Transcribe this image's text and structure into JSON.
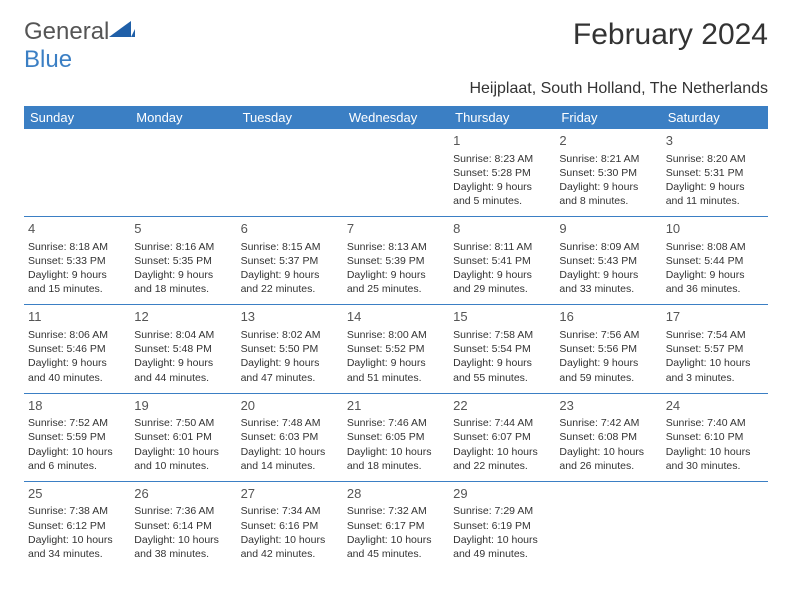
{
  "logo": {
    "text1": "General",
    "text2": "Blue"
  },
  "title": "February 2024",
  "location": "Heijplaat, South Holland, The Netherlands",
  "colors": {
    "header_bg": "#3b7fc4",
    "header_fg": "#ffffff",
    "border": "#3b7fc4",
    "text": "#333333"
  },
  "typography": {
    "title_fontsize": 30,
    "location_fontsize": 16,
    "dayhead_fontsize": 13,
    "cell_fontsize": 10.5
  },
  "day_headers": [
    "Sunday",
    "Monday",
    "Tuesday",
    "Wednesday",
    "Thursday",
    "Friday",
    "Saturday"
  ],
  "weeks": [
    [
      null,
      null,
      null,
      null,
      {
        "n": "1",
        "sr": "Sunrise: 8:23 AM",
        "ss": "Sunset: 5:28 PM",
        "d1": "Daylight: 9 hours",
        "d2": "and 5 minutes."
      },
      {
        "n": "2",
        "sr": "Sunrise: 8:21 AM",
        "ss": "Sunset: 5:30 PM",
        "d1": "Daylight: 9 hours",
        "d2": "and 8 minutes."
      },
      {
        "n": "3",
        "sr": "Sunrise: 8:20 AM",
        "ss": "Sunset: 5:31 PM",
        "d1": "Daylight: 9 hours",
        "d2": "and 11 minutes."
      }
    ],
    [
      {
        "n": "4",
        "sr": "Sunrise: 8:18 AM",
        "ss": "Sunset: 5:33 PM",
        "d1": "Daylight: 9 hours",
        "d2": "and 15 minutes."
      },
      {
        "n": "5",
        "sr": "Sunrise: 8:16 AM",
        "ss": "Sunset: 5:35 PM",
        "d1": "Daylight: 9 hours",
        "d2": "and 18 minutes."
      },
      {
        "n": "6",
        "sr": "Sunrise: 8:15 AM",
        "ss": "Sunset: 5:37 PM",
        "d1": "Daylight: 9 hours",
        "d2": "and 22 minutes."
      },
      {
        "n": "7",
        "sr": "Sunrise: 8:13 AM",
        "ss": "Sunset: 5:39 PM",
        "d1": "Daylight: 9 hours",
        "d2": "and 25 minutes."
      },
      {
        "n": "8",
        "sr": "Sunrise: 8:11 AM",
        "ss": "Sunset: 5:41 PM",
        "d1": "Daylight: 9 hours",
        "d2": "and 29 minutes."
      },
      {
        "n": "9",
        "sr": "Sunrise: 8:09 AM",
        "ss": "Sunset: 5:43 PM",
        "d1": "Daylight: 9 hours",
        "d2": "and 33 minutes."
      },
      {
        "n": "10",
        "sr": "Sunrise: 8:08 AM",
        "ss": "Sunset: 5:44 PM",
        "d1": "Daylight: 9 hours",
        "d2": "and 36 minutes."
      }
    ],
    [
      {
        "n": "11",
        "sr": "Sunrise: 8:06 AM",
        "ss": "Sunset: 5:46 PM",
        "d1": "Daylight: 9 hours",
        "d2": "and 40 minutes."
      },
      {
        "n": "12",
        "sr": "Sunrise: 8:04 AM",
        "ss": "Sunset: 5:48 PM",
        "d1": "Daylight: 9 hours",
        "d2": "and 44 minutes."
      },
      {
        "n": "13",
        "sr": "Sunrise: 8:02 AM",
        "ss": "Sunset: 5:50 PM",
        "d1": "Daylight: 9 hours",
        "d2": "and 47 minutes."
      },
      {
        "n": "14",
        "sr": "Sunrise: 8:00 AM",
        "ss": "Sunset: 5:52 PM",
        "d1": "Daylight: 9 hours",
        "d2": "and 51 minutes."
      },
      {
        "n": "15",
        "sr": "Sunrise: 7:58 AM",
        "ss": "Sunset: 5:54 PM",
        "d1": "Daylight: 9 hours",
        "d2": "and 55 minutes."
      },
      {
        "n": "16",
        "sr": "Sunrise: 7:56 AM",
        "ss": "Sunset: 5:56 PM",
        "d1": "Daylight: 9 hours",
        "d2": "and 59 minutes."
      },
      {
        "n": "17",
        "sr": "Sunrise: 7:54 AM",
        "ss": "Sunset: 5:57 PM",
        "d1": "Daylight: 10 hours",
        "d2": "and 3 minutes."
      }
    ],
    [
      {
        "n": "18",
        "sr": "Sunrise: 7:52 AM",
        "ss": "Sunset: 5:59 PM",
        "d1": "Daylight: 10 hours",
        "d2": "and 6 minutes."
      },
      {
        "n": "19",
        "sr": "Sunrise: 7:50 AM",
        "ss": "Sunset: 6:01 PM",
        "d1": "Daylight: 10 hours",
        "d2": "and 10 minutes."
      },
      {
        "n": "20",
        "sr": "Sunrise: 7:48 AM",
        "ss": "Sunset: 6:03 PM",
        "d1": "Daylight: 10 hours",
        "d2": "and 14 minutes."
      },
      {
        "n": "21",
        "sr": "Sunrise: 7:46 AM",
        "ss": "Sunset: 6:05 PM",
        "d1": "Daylight: 10 hours",
        "d2": "and 18 minutes."
      },
      {
        "n": "22",
        "sr": "Sunrise: 7:44 AM",
        "ss": "Sunset: 6:07 PM",
        "d1": "Daylight: 10 hours",
        "d2": "and 22 minutes."
      },
      {
        "n": "23",
        "sr": "Sunrise: 7:42 AM",
        "ss": "Sunset: 6:08 PM",
        "d1": "Daylight: 10 hours",
        "d2": "and 26 minutes."
      },
      {
        "n": "24",
        "sr": "Sunrise: 7:40 AM",
        "ss": "Sunset: 6:10 PM",
        "d1": "Daylight: 10 hours",
        "d2": "and 30 minutes."
      }
    ],
    [
      {
        "n": "25",
        "sr": "Sunrise: 7:38 AM",
        "ss": "Sunset: 6:12 PM",
        "d1": "Daylight: 10 hours",
        "d2": "and 34 minutes."
      },
      {
        "n": "26",
        "sr": "Sunrise: 7:36 AM",
        "ss": "Sunset: 6:14 PM",
        "d1": "Daylight: 10 hours",
        "d2": "and 38 minutes."
      },
      {
        "n": "27",
        "sr": "Sunrise: 7:34 AM",
        "ss": "Sunset: 6:16 PM",
        "d1": "Daylight: 10 hours",
        "d2": "and 42 minutes."
      },
      {
        "n": "28",
        "sr": "Sunrise: 7:32 AM",
        "ss": "Sunset: 6:17 PM",
        "d1": "Daylight: 10 hours",
        "d2": "and 45 minutes."
      },
      {
        "n": "29",
        "sr": "Sunrise: 7:29 AM",
        "ss": "Sunset: 6:19 PM",
        "d1": "Daylight: 10 hours",
        "d2": "and 49 minutes."
      },
      null,
      null
    ]
  ]
}
